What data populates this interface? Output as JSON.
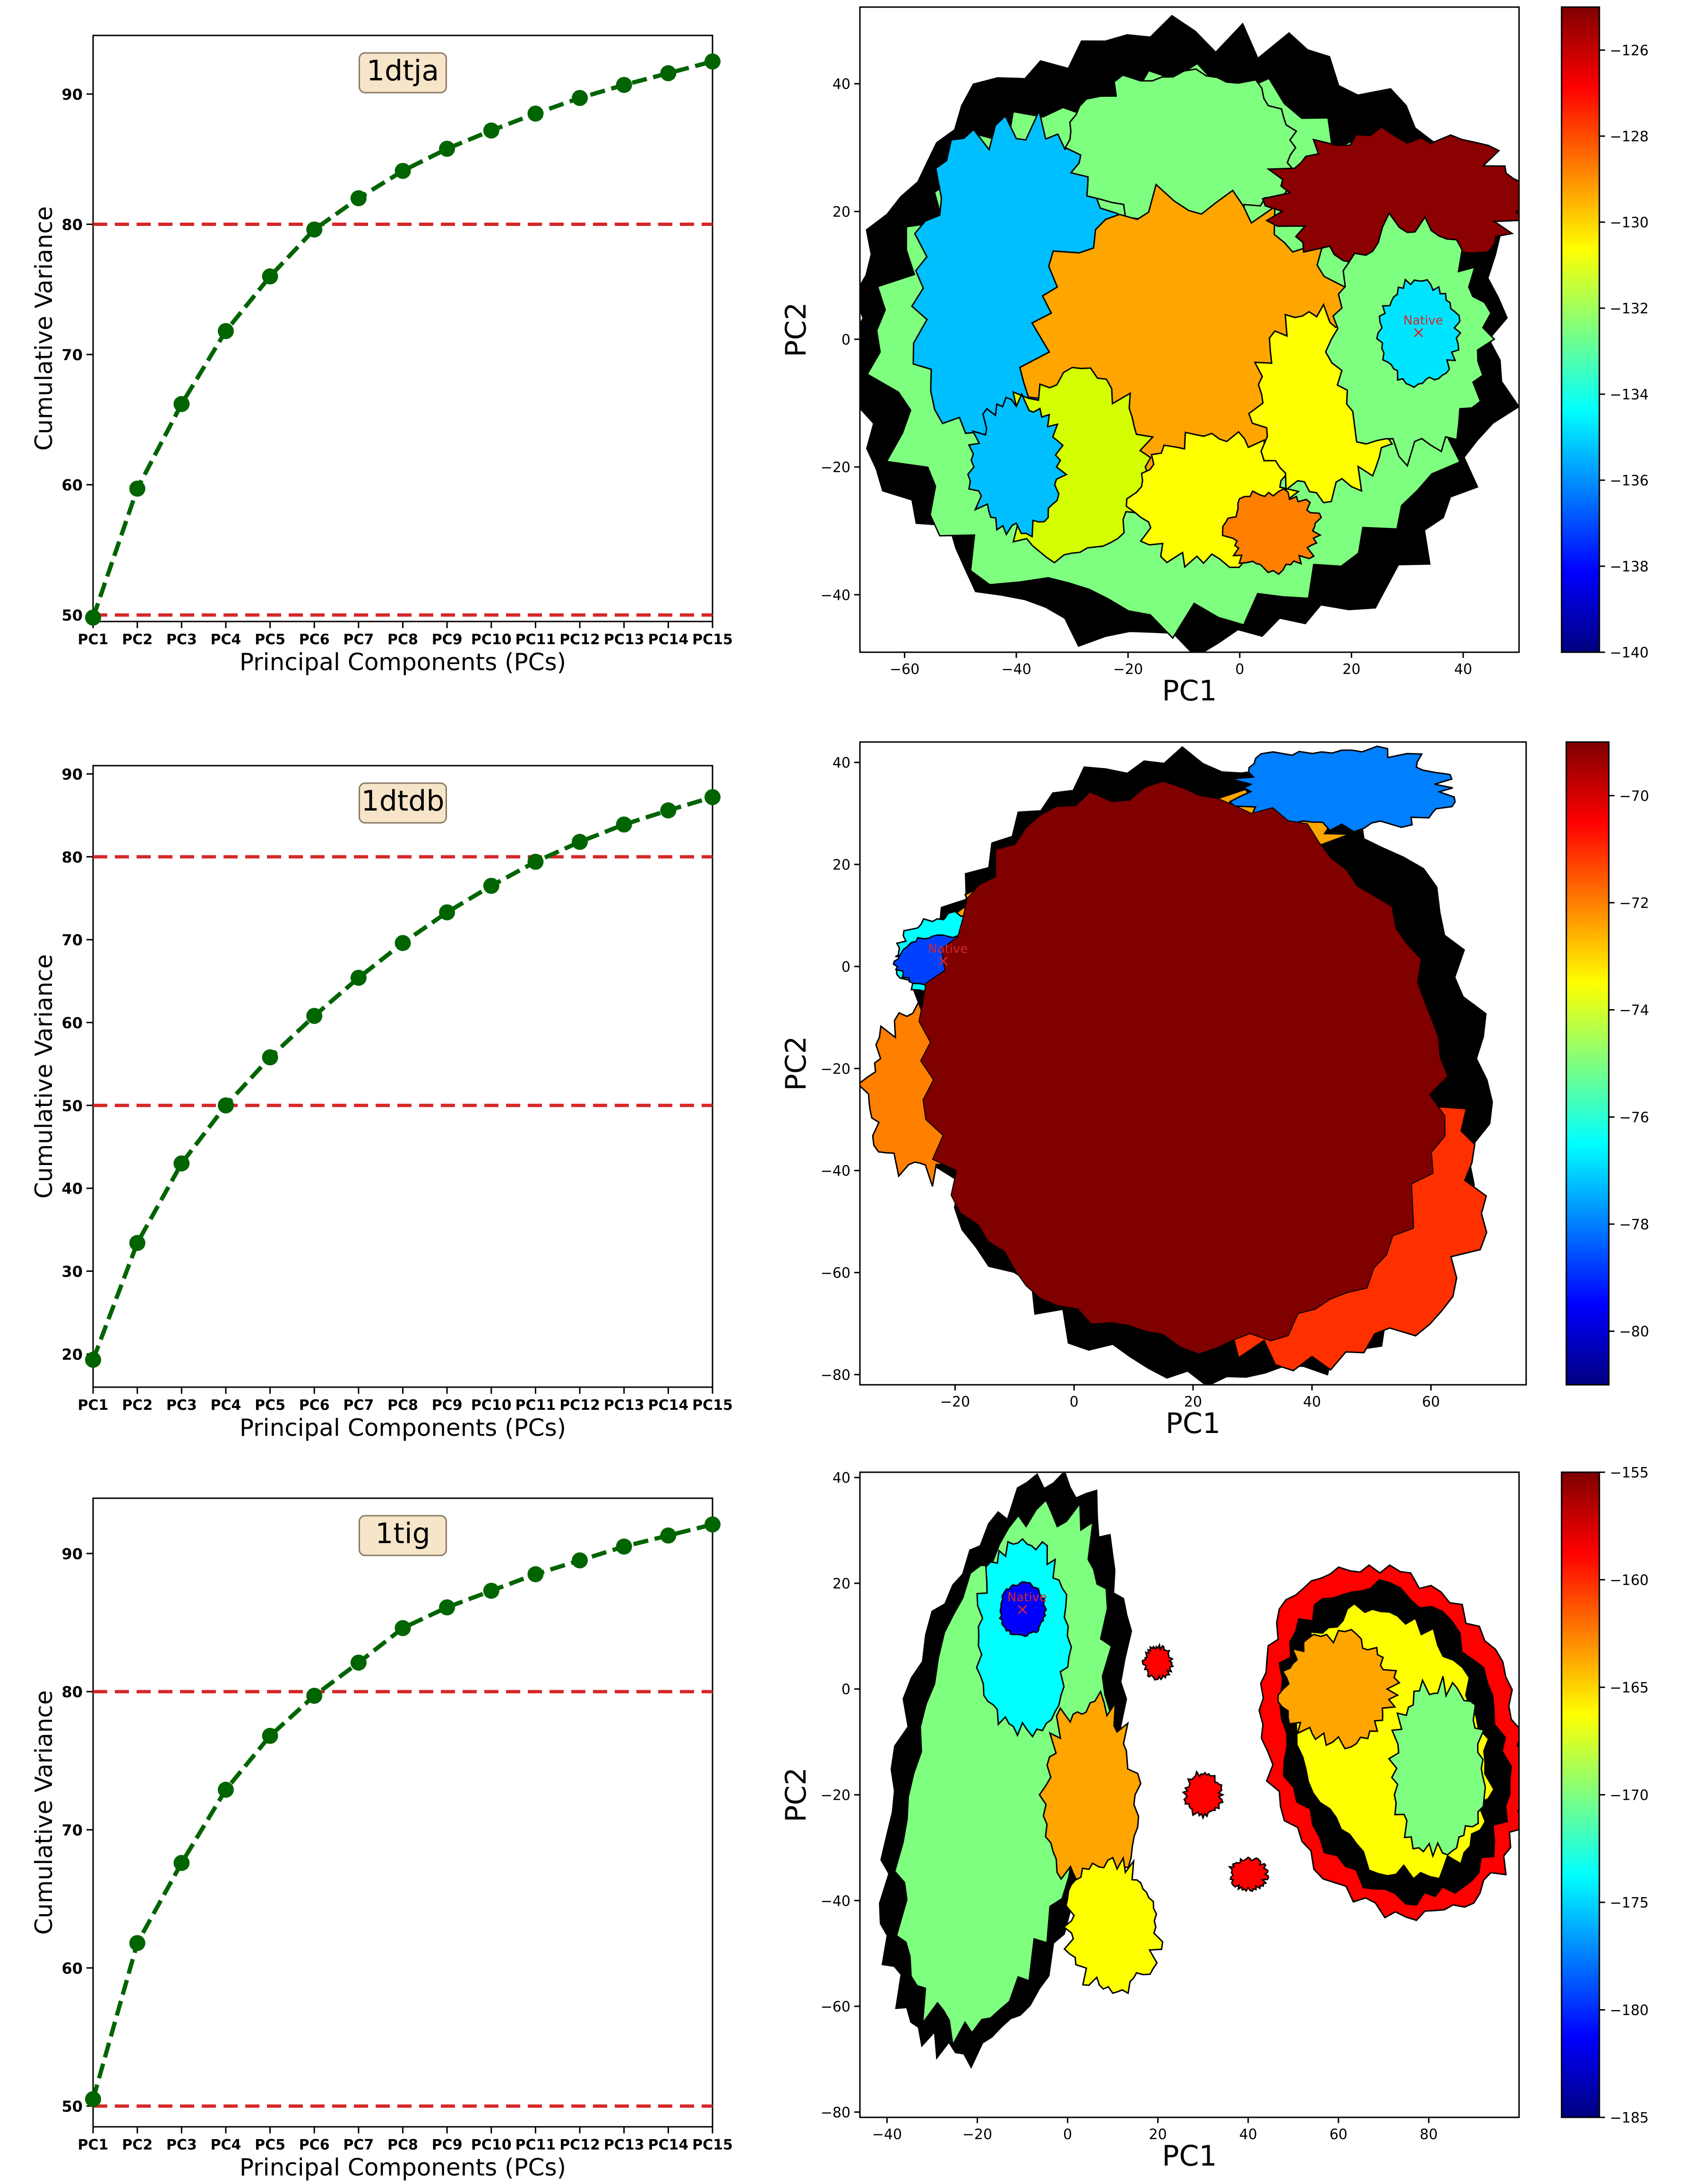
{
  "colorbar_colors": [
    "#00007f",
    "#0000ff",
    "#007fff",
    "#00ffff",
    "#7fff7f",
    "#ffff00",
    "#ff7f00",
    "#ff0000",
    "#7f0000"
  ],
  "series_color": "#006400",
  "threshold_color": "#d62728",
  "chart_data": [
    {
      "type": "line",
      "title": "1dtja",
      "xlabel": "Principal Components (PCs)",
      "ylabel": "Cumulative Variance",
      "categories": [
        "PC1",
        "PC2",
        "PC3",
        "PC4",
        "PC5",
        "PC6",
        "PC7",
        "PC8",
        "PC9",
        "PC10",
        "PC11",
        "PC12",
        "PC13",
        "PC14",
        "PC15"
      ],
      "values": [
        49.8,
        59.7,
        66.2,
        71.8,
        76.0,
        79.6,
        82.0,
        84.1,
        85.8,
        87.2,
        88.5,
        89.7,
        90.7,
        91.6,
        92.5
      ],
      "thresholds": [
        50,
        80
      ],
      "yticks": [
        50,
        60,
        70,
        80,
        90
      ],
      "ylim": [
        49.5,
        94.5
      ]
    },
    {
      "type": "heatmap",
      "xlabel": "PC1",
      "ylabel": "PC2",
      "marker_label": "Native",
      "xticks": [
        -60,
        -40,
        -20,
        0,
        20,
        40
      ],
      "yticks": [
        -40,
        -20,
        0,
        20,
        40
      ],
      "xlim": [
        -68,
        50
      ],
      "ylim": [
        -49,
        52
      ],
      "native": [
        32,
        1
      ],
      "colorbar_ticks": [
        -126,
        -128,
        -130,
        -132,
        -134,
        -136,
        -138,
        -140
      ],
      "colorbar_range": [
        -140,
        -125
      ]
    },
    {
      "type": "line",
      "title": "1dtdb",
      "xlabel": "Principal Components (PCs)",
      "ylabel": "Cumulative Variance",
      "categories": [
        "PC1",
        "PC2",
        "PC3",
        "PC4",
        "PC5",
        "PC6",
        "PC7",
        "PC8",
        "PC9",
        "PC10",
        "PC11",
        "PC12",
        "PC13",
        "PC14",
        "PC15"
      ],
      "values": [
        19.3,
        33.4,
        43.0,
        50.0,
        55.8,
        60.8,
        65.4,
        69.6,
        73.3,
        76.5,
        79.4,
        81.8,
        83.9,
        85.6,
        87.2
      ],
      "thresholds": [
        50,
        80
      ],
      "yticks": [
        20,
        30,
        40,
        50,
        60,
        70,
        80,
        90
      ],
      "ylim": [
        16,
        91
      ]
    },
    {
      "type": "heatmap",
      "xlabel": "PC1",
      "ylabel": "PC2",
      "marker_label": "Native",
      "xticks": [
        -20,
        0,
        20,
        40,
        60
      ],
      "yticks": [
        -80,
        -60,
        -40,
        -20,
        0,
        20,
        40
      ],
      "xlim": [
        -36,
        76
      ],
      "ylim": [
        -82,
        44
      ],
      "native": [
        -22,
        1
      ],
      "colorbar_ticks": [
        -70,
        -72,
        -74,
        -76,
        -78,
        -80
      ],
      "colorbar_range": [
        -81,
        -69
      ]
    },
    {
      "type": "line",
      "title": "1tig",
      "xlabel": "Principal Components (PCs)",
      "ylabel": "Cumulative Variance",
      "categories": [
        "PC1",
        "PC2",
        "PC3",
        "PC4",
        "PC5",
        "PC6",
        "PC7",
        "PC8",
        "PC9",
        "PC10",
        "PC11",
        "PC12",
        "PC13",
        "PC14",
        "PC15"
      ],
      "values": [
        50.5,
        61.8,
        67.6,
        72.9,
        76.8,
        79.7,
        82.1,
        84.6,
        86.1,
        87.3,
        88.5,
        89.5,
        90.5,
        91.3,
        92.1
      ],
      "thresholds": [
        50,
        80
      ],
      "yticks": [
        50,
        60,
        70,
        80,
        90
      ],
      "ylim": [
        48.5,
        94
      ]
    },
    {
      "type": "heatmap",
      "xlabel": "PC1",
      "ylabel": "PC2",
      "marker_label": "Native",
      "xticks": [
        -40,
        -20,
        0,
        20,
        40,
        60,
        80
      ],
      "yticks": [
        -80,
        -60,
        -40,
        -20,
        0,
        20,
        40
      ],
      "xlim": [
        -46,
        100
      ],
      "ylim": [
        -81,
        41
      ],
      "native": [
        -10,
        15
      ],
      "colorbar_ticks": [
        -155,
        -160,
        -165,
        -170,
        -175,
        -180,
        -185
      ],
      "colorbar_range": [
        -185,
        -155
      ]
    }
  ]
}
